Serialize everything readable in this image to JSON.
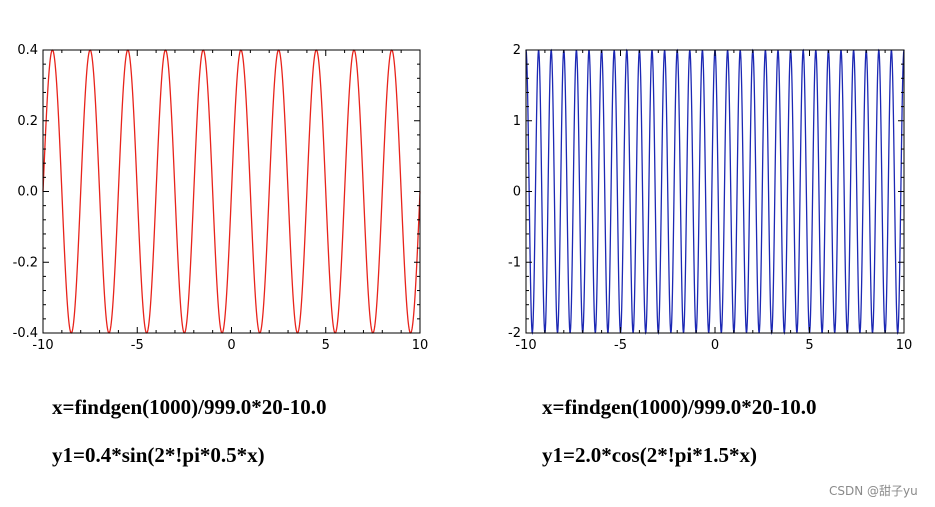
{
  "chart_data": [
    {
      "type": "line",
      "title": "",
      "xlabel": "",
      "ylabel": "",
      "xlim": [
        -10,
        10
      ],
      "ylim": [
        -0.4,
        0.4
      ],
      "x_ticks": [
        -10,
        -5,
        0,
        5,
        10
      ],
      "x_tick_labels": [
        "-10",
        "-5",
        "0",
        "5",
        "10"
      ],
      "y_ticks": [
        -0.4,
        -0.2,
        0.0,
        0.2,
        0.4
      ],
      "y_tick_labels": [
        "-0.4",
        "-0.2",
        "0.0",
        "0.2",
        "0.4"
      ],
      "grid": false,
      "series": [
        {
          "function": "0.4*sin(2*pi*0.5*x)",
          "amplitude": 0.4,
          "frequency": 0.5,
          "kind": "sin",
          "x_start": -10,
          "x_end": 10,
          "n_points": 1000,
          "color": "#e8231b"
        }
      ]
    },
    {
      "type": "line",
      "title": "",
      "xlabel": "",
      "ylabel": "",
      "xlim": [
        -10,
        10
      ],
      "ylim": [
        -2,
        2
      ],
      "x_ticks": [
        -10,
        -5,
        0,
        5,
        10
      ],
      "x_tick_labels": [
        "-10",
        "-5",
        "0",
        "5",
        "10"
      ],
      "y_ticks": [
        -2,
        -1,
        0,
        1,
        2
      ],
      "y_tick_labels": [
        "-2",
        "-1",
        "0",
        "1",
        "2"
      ],
      "grid": false,
      "series": [
        {
          "function": "2.0*cos(2*pi*1.5*x)",
          "amplitude": 2.0,
          "frequency": 1.5,
          "kind": "cos",
          "x_start": -10,
          "x_end": 10,
          "n_points": 1000,
          "color": "#1c28b4"
        }
      ]
    }
  ],
  "captions": {
    "left_line1": "x=findgen(1000)/999.0*20-10.0",
    "left_line2": "y1=0.4*sin(2*!pi*0.5*x)",
    "right_line1": "x=findgen(1000)/999.0*20-10.0",
    "right_line2": "y1=2.0*cos(2*!pi*1.5*x)"
  },
  "watermark": "CSDN @甜子yu"
}
